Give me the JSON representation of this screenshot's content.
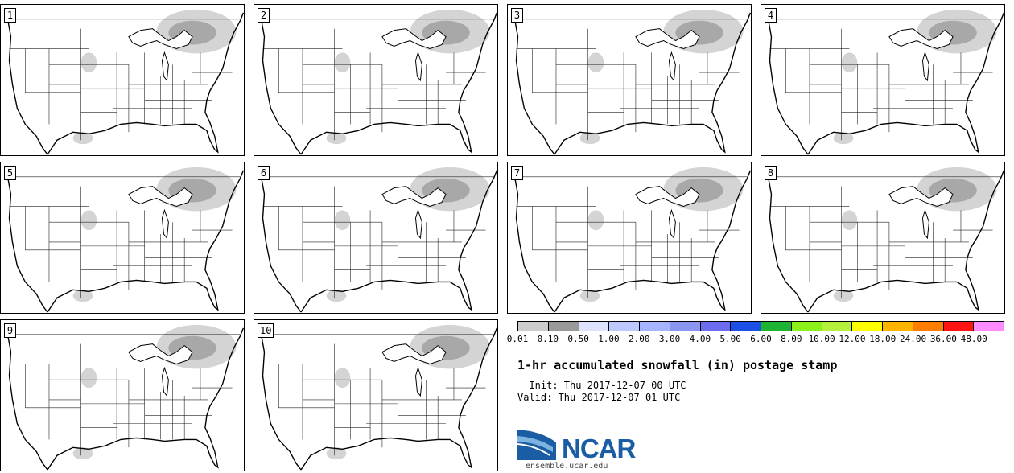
{
  "panels": [
    {
      "label": "1"
    },
    {
      "label": "2"
    },
    {
      "label": "3"
    },
    {
      "label": "4"
    },
    {
      "label": "5"
    },
    {
      "label": "6"
    },
    {
      "label": "7"
    },
    {
      "label": "8"
    },
    {
      "label": "9"
    },
    {
      "label": "10"
    }
  ],
  "legend": {
    "colors": [
      "#cccccc",
      "#999999",
      "#dde3ff",
      "#bdc8ff",
      "#a6b3ff",
      "#8b96f2",
      "#6c6cf0",
      "#1c4fe6",
      "#1cb432",
      "#8cf01a",
      "#b4f03c",
      "#ffff00",
      "#ffb400",
      "#ff7d00",
      "#ff1414",
      "#ff8cff"
    ],
    "labels": [
      "0.01",
      "0.10",
      "0.50",
      "1.00",
      "2.00",
      "3.00",
      "4.00",
      "5.00",
      "6.00",
      "8.00",
      "10.00",
      "12.00",
      "18.00",
      "24.00",
      "36.00",
      "48.00"
    ]
  },
  "title": "1-hr accumulated snowfall (in) postage stamp",
  "init_line": "  Init: Thu 2017-12-07 00 UTC",
  "valid_line": "Valid: Thu 2017-12-07 01 UTC",
  "logo_text": "NCAR",
  "url": "ensemble.ucar.edu"
}
